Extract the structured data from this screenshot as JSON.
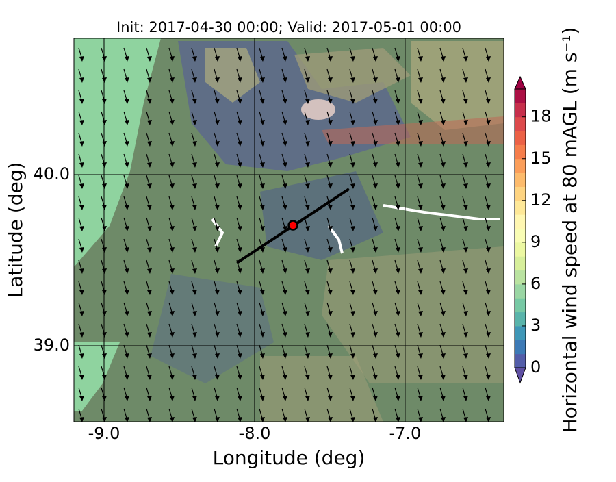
{
  "chart_data": {
    "type": "map",
    "title": "Init: 2017-04-30 00:00; Valid: 2017-05-01 00:00",
    "xlabel": "Longitude (deg)",
    "ylabel": "Latitude (deg)",
    "xlim": [
      -9.2,
      -6.345
    ],
    "ylim": [
      38.556,
      40.796
    ],
    "xticks": [
      {
        "value": -9,
        "label": "-9.0"
      },
      {
        "value": -8,
        "label": "-8.0"
      },
      {
        "value": -7,
        "label": "-7.0"
      }
    ],
    "yticks": [
      {
        "value": 39,
        "label": "39.0"
      },
      {
        "value": 40,
        "label": "40.0"
      }
    ],
    "grid": true,
    "site": {
      "lon": -7.745,
      "lat": 39.704,
      "color": "#ff0000"
    },
    "transect": {
      "lon": [
        -8.118,
        -7.373
      ],
      "lat": [
        39.484,
        39.916
      ]
    },
    "colorbar": {
      "label": "Horizontal wind speed at 80 mAGL (m s⁻¹)",
      "lim": [
        0,
        20
      ],
      "ticks": [
        0,
        3,
        6,
        9,
        12,
        15,
        18
      ],
      "colors": [
        "#5e4fa2",
        "#3288bd",
        "#66c2a5",
        "#abdda4",
        "#e6f598",
        "#ffffbf",
        "#fee08b",
        "#fdae61",
        "#f46d43",
        "#d53e4f",
        "#9e0142"
      ]
    }
  }
}
